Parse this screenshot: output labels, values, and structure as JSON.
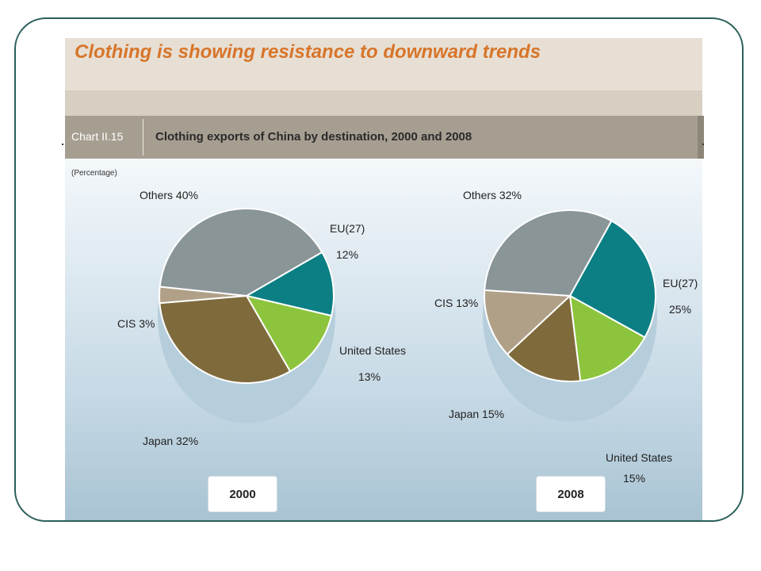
{
  "headline": "Clothing is showing resistance to downward trends",
  "chart_number": "Chart II.15",
  "chart_title": "Clothing exports of China by destination, 2000 and 2008",
  "unit_note": "(Percentage)",
  "colors": {
    "Others": "#8a9598",
    "EU(27)": "#0b7f83",
    "United States": "#8dc43d",
    "Japan": "#7e6a3b",
    "CIS": "#b0a088",
    "frame": "#2b5f5a",
    "headline": "#d7752a"
  },
  "chart_data": [
    {
      "type": "pie",
      "title": "2000",
      "categories": [
        "EU(27)",
        "United States",
        "Japan",
        "CIS",
        "Others"
      ],
      "values": [
        12,
        13,
        32,
        3,
        40
      ],
      "labels": [
        "EU(27)",
        "12%",
        "United States",
        "13%",
        "Japan 32%",
        "CIS 3%",
        "Others 40%"
      ]
    },
    {
      "type": "pie",
      "title": "2008",
      "categories": [
        "EU(27)",
        "United States",
        "Japan",
        "CIS",
        "Others"
      ],
      "values": [
        25,
        15,
        15,
        13,
        32
      ],
      "labels": [
        "EU(27)",
        "25%",
        "United States",
        "15%",
        "Japan 15%",
        "CIS 13%",
        "Others 32%"
      ]
    }
  ]
}
